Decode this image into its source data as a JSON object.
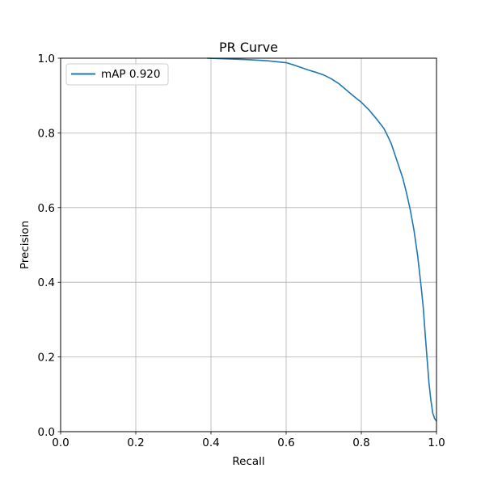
{
  "chart_data": {
    "type": "line",
    "title": "PR Curve",
    "xlabel": "Recall",
    "ylabel": "Precision",
    "xlim": [
      0.0,
      1.0
    ],
    "ylim": [
      0.0,
      1.0
    ],
    "xticks": [
      "0.0",
      "0.2",
      "0.4",
      "0.6",
      "0.8",
      "1.0"
    ],
    "yticks": [
      "0.0",
      "0.2",
      "0.4",
      "0.6",
      "0.8",
      "1.0"
    ],
    "grid": true,
    "legend_position": "top-left",
    "series": [
      {
        "name": "mAP 0.920",
        "color": "#1f77b4",
        "x": [
          0.39,
          0.45,
          0.5,
          0.55,
          0.6,
          0.62,
          0.64,
          0.66,
          0.68,
          0.7,
          0.72,
          0.74,
          0.76,
          0.78,
          0.8,
          0.82,
          0.83,
          0.84,
          0.85,
          0.86,
          0.87,
          0.88,
          0.89,
          0.9,
          0.91,
          0.92,
          0.93,
          0.94,
          0.95,
          0.955,
          0.96,
          0.965,
          0.97,
          0.975,
          0.98,
          0.985,
          0.99,
          0.995,
          1.0
        ],
        "y": [
          1.0,
          0.998,
          0.996,
          0.993,
          0.988,
          0.982,
          0.975,
          0.968,
          0.962,
          0.955,
          0.945,
          0.932,
          0.915,
          0.898,
          0.882,
          0.862,
          0.85,
          0.838,
          0.825,
          0.812,
          0.792,
          0.77,
          0.74,
          0.71,
          0.68,
          0.64,
          0.595,
          0.54,
          0.47,
          0.425,
          0.38,
          0.33,
          0.26,
          0.195,
          0.13,
          0.085,
          0.05,
          0.035,
          0.028
        ]
      }
    ]
  }
}
